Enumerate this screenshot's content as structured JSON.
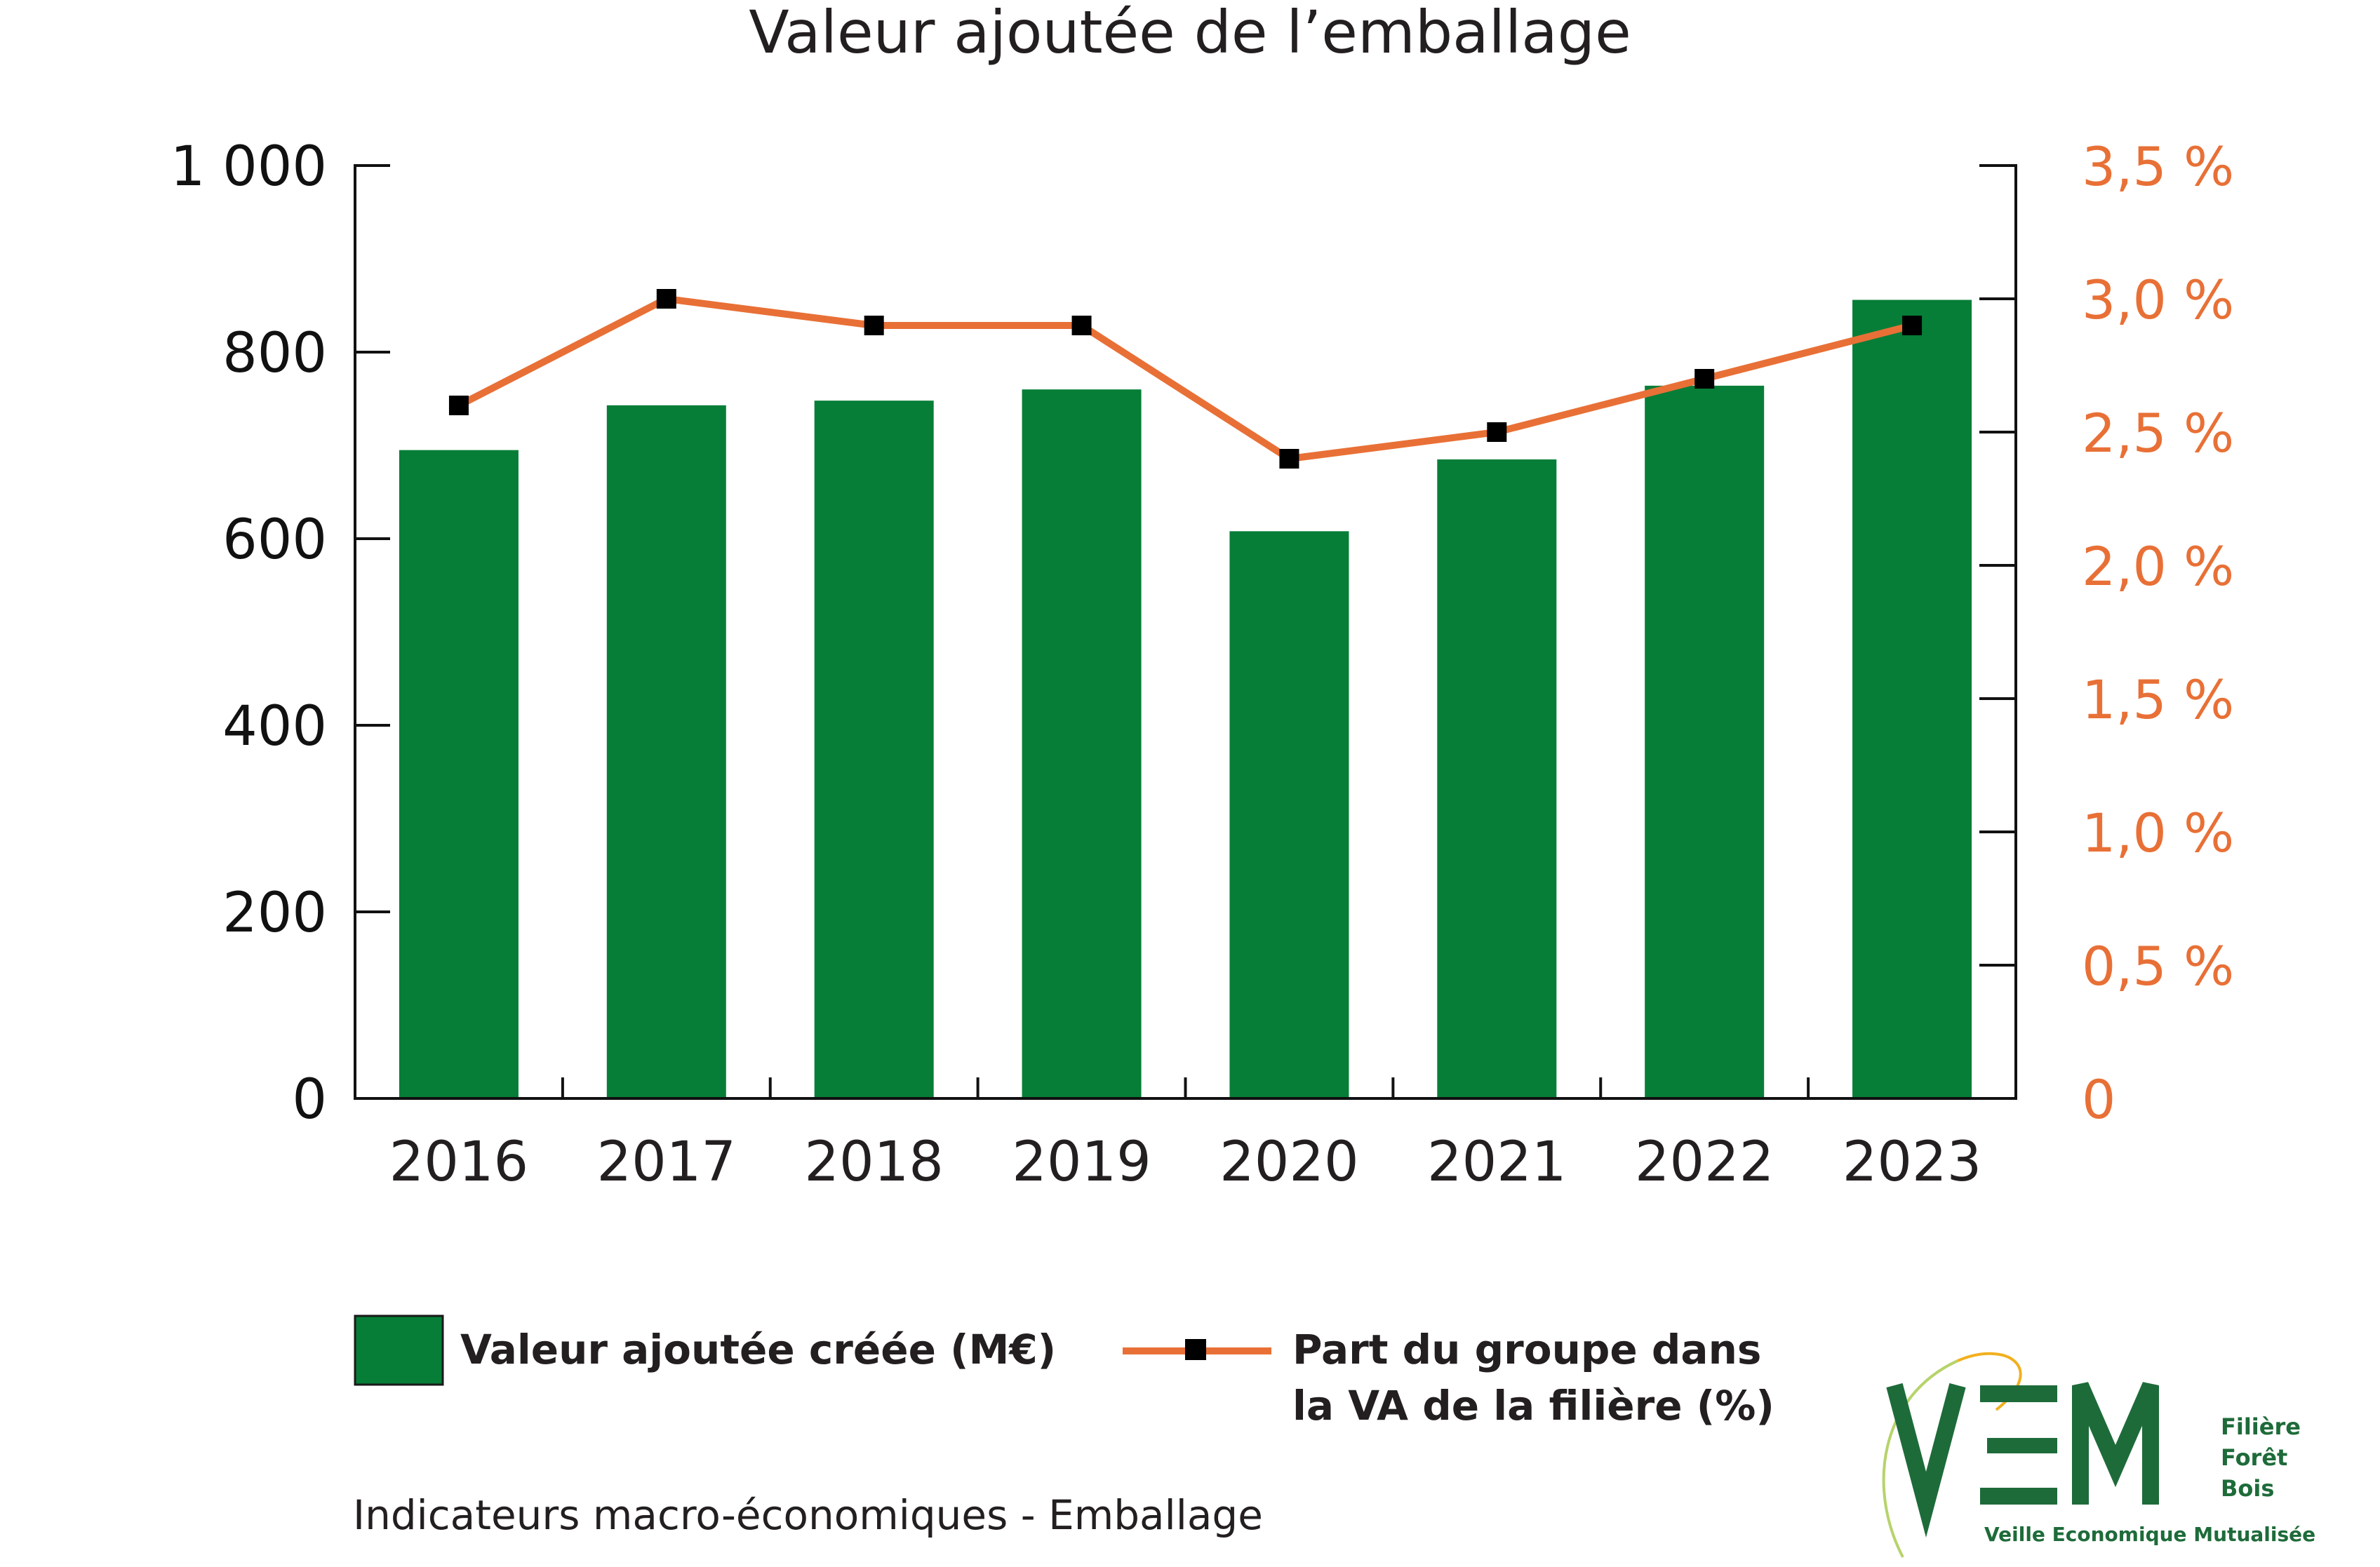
{
  "chart_data": {
    "type": "bar",
    "title": "Valeur ajoutée de l’emballage",
    "categories": [
      "2016",
      "2017",
      "2018",
      "2019",
      "2020",
      "2021",
      "2022",
      "2023"
    ],
    "series": [
      {
        "name": "Valeur ajoutée créée (M€)",
        "type": "bar",
        "axis": "left",
        "values": [
          695,
          743,
          748,
          760,
          608,
          685,
          764,
          856
        ]
      },
      {
        "name": "Part du groupe dans la VA de la filière (%)",
        "type": "line",
        "axis": "right",
        "values": [
          2.6,
          3.0,
          2.9,
          2.9,
          2.4,
          2.5,
          2.7,
          2.9
        ]
      }
    ],
    "ylim_left": [
      0,
      1000
    ],
    "ylim_right": [
      0,
      3.5
    ],
    "yticks_left": [
      "0",
      "200",
      "400",
      "600",
      "800",
      "1 000"
    ],
    "yticks_right": [
      "0",
      "0,5 %",
      "1,0 %",
      "1,5 %",
      "2,0 %",
      "2,5 %",
      "3,0 %",
      "3,5 %"
    ],
    "legend": {
      "bar_label": "Valeur ajoutée créée (M€)",
      "line_label_1": "Part du groupe dans",
      "line_label_2": "la VA de la filière (%)"
    },
    "grid": false,
    "legend_position": "bottom",
    "colors": {
      "bar": "#067e37",
      "line": "#e87036",
      "marker": "#000000"
    }
  },
  "footer": "Indicateurs macro-économiques - Emballage",
  "logo": {
    "mark": "VEM",
    "line1": "Filière",
    "line2": "Forêt",
    "line3": "Bois",
    "tagline": "Veille Economique Mutualisée"
  }
}
